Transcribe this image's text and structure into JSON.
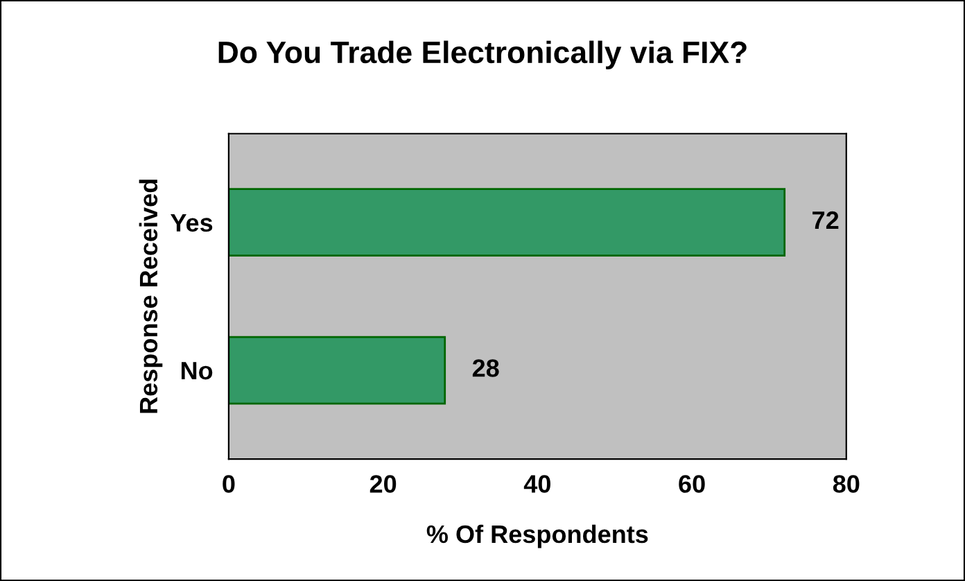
{
  "chart_data": {
    "type": "bar",
    "orientation": "horizontal",
    "title": "Do You Trade Electronically via FIX?",
    "xlabel": "% Of Respondents",
    "ylabel": "Response Received",
    "categories": [
      "Yes",
      "No"
    ],
    "values": [
      72,
      28
    ],
    "color": "#339966",
    "xlim": [
      0,
      80
    ],
    "xticks": [
      0,
      20,
      40,
      60,
      80
    ],
    "data_labels": true,
    "grid": false,
    "legend": false
  }
}
